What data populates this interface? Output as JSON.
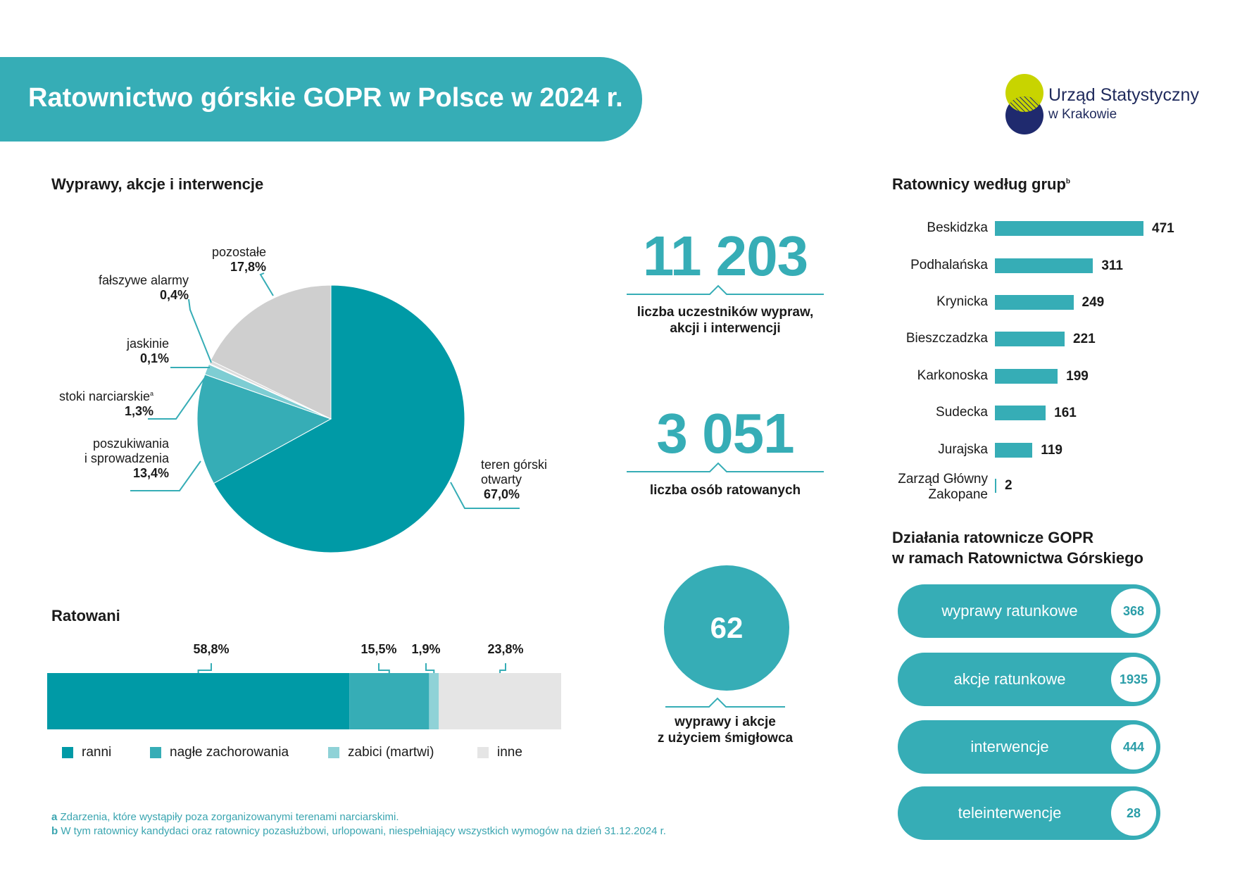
{
  "header": {
    "title": "Ratownictwo górskie GOPR w Polsce w 2024 r.",
    "logo_line1": "Urząd Statystyczny",
    "logo_line2": "w Krakowie"
  },
  "colors": {
    "primary": "#36adb6",
    "pie_main": "#009aa6",
    "pie_search": "#36adb6",
    "pie_ski": "#7ecdd3",
    "pie_cave": "#b2e0e4",
    "pie_false": "#dcdcdc",
    "pie_other": "#cfcfcf",
    "logo_lime": "#c8d400",
    "logo_navy": "#1f2a6e"
  },
  "pie_section": {
    "title": "Wyprawy, akcje i interwencje",
    "labels": [
      {
        "name": "teren górski",
        "name2": "otwarty",
        "value": "67,0%"
      },
      {
        "name": "poszukiwania",
        "name2": "i sprowadzenia",
        "value": "13,4%"
      },
      {
        "name": "stoki narciarskie",
        "sup": "a",
        "value": "1,3%"
      },
      {
        "name": "jaskinie",
        "value": "0,1%"
      },
      {
        "name": "fałszywe alarmy",
        "value": "0,4%"
      },
      {
        "name": "pozostałe",
        "value": "17,8%"
      }
    ]
  },
  "stats": {
    "participants_value": "11 203",
    "participants_caption_1": "liczba uczestników wypraw,",
    "participants_caption_2": "akcji i interwencji",
    "rescued_value": "3 051",
    "rescued_caption": "liczba osób ratowanych",
    "heli_value": "62",
    "heli_caption_1": "wyprawy i akcje",
    "heli_caption_2": "z użyciem śmigłowca"
  },
  "ratowani": {
    "title": "Ratowani",
    "legend": [
      "ranni",
      "nagłe zachorowania",
      "zabici (martwi)",
      "inne"
    ]
  },
  "groups": {
    "title": "Ratownicy według grup",
    "title_sup": "b"
  },
  "actions": {
    "title_1": "Działania ratownicze GOPR",
    "title_2": "w ramach Ratownictwa Górskiego",
    "items": [
      {
        "label": "wyprawy ratunkowe",
        "value": "368"
      },
      {
        "label": "akcje ratunkowe",
        "value": "1935"
      },
      {
        "label": "interwencje",
        "value": "444"
      },
      {
        "label": "teleinterwencje",
        "value": "28"
      }
    ]
  },
  "footnotes": {
    "a_letter": "a",
    "a_text": "Zdarzenia, które wystąpiły poza zorganizowanymi terenami narciarskimi.",
    "b_letter": "b",
    "b_text": "W tym ratownicy kandydaci oraz ratownicy pozasłużbowi, urlopowani, niespełniający wszystkich wymogów na dzień 31.12.2024 r."
  },
  "chart_data": [
    {
      "type": "pie",
      "title": "Wyprawy, akcje i interwencje",
      "slices": [
        {
          "label": "teren górski otwarty",
          "value": 67.0
        },
        {
          "label": "poszukiwania i sprowadzenia",
          "value": 13.4
        },
        {
          "label": "stoki narciarskie",
          "value": 1.3
        },
        {
          "label": "jaskinie",
          "value": 0.1
        },
        {
          "label": "fałszywe alarmy",
          "value": 0.4
        },
        {
          "label": "pozostałe",
          "value": 17.8
        }
      ]
    },
    {
      "type": "bar",
      "title": "Ratowani",
      "stacked": true,
      "orientation": "horizontal",
      "series": [
        {
          "name": "ranni",
          "value": 58.8,
          "label": "58,8%",
          "color": "#009aa6"
        },
        {
          "name": "nagłe zachorowania",
          "value": 15.5,
          "label": "15,5%",
          "color": "#36adb6"
        },
        {
          "name": "zabici (martwi)",
          "value": 1.9,
          "label": "1,9%",
          "color": "#8fd2d7"
        },
        {
          "name": "inne",
          "value": 23.8,
          "label": "23,8%",
          "color": "#e5e5e5"
        }
      ]
    },
    {
      "type": "bar",
      "title": "Ratownicy według grup",
      "orientation": "horizontal",
      "categories": [
        "Beskidzka",
        "Podhalańska",
        "Krynicka",
        "Bieszczadzka",
        "Karkonoska",
        "Sudecka",
        "Jurajska",
        "Zarząd Główny\nZakopane"
      ],
      "values": [
        471,
        311,
        249,
        221,
        199,
        161,
        119,
        2
      ]
    }
  ]
}
